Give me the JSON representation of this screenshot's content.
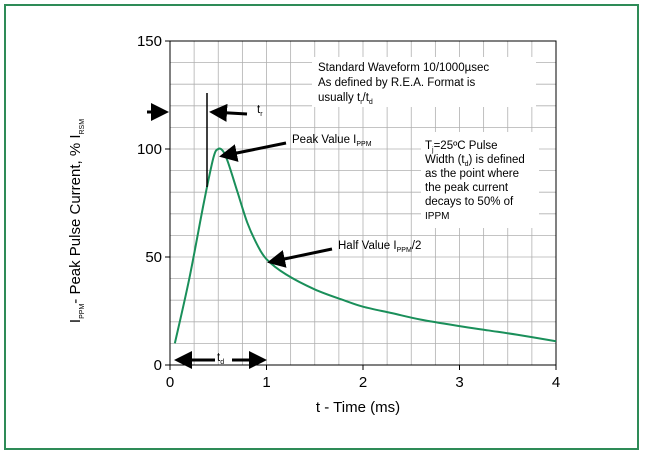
{
  "colors": {
    "frame": "#2e8b57",
    "curve": "#1a8f5a",
    "grid": "#b0b0b0",
    "arrow": "#000000"
  },
  "chart_data": {
    "type": "line",
    "title": "",
    "xlabel": "t - Time (ms)",
    "ylabel_parts": {
      "main": "I",
      "sub1": "PPM",
      "mid": "- Peak Pulse Current, % I",
      "sub2": "RSM"
    },
    "xlim": [
      0,
      4
    ],
    "ylim": [
      0,
      150
    ],
    "x_ticks": [
      "0",
      "1",
      "2",
      "3",
      "4"
    ],
    "y_ticks": [
      "0",
      "50",
      "100",
      "150"
    ],
    "grid": true,
    "series": [
      {
        "name": "",
        "x": [
          0.05,
          0.2,
          0.35,
          0.45,
          0.5,
          0.55,
          0.6,
          0.7,
          0.8,
          0.9,
          1.0,
          1.2,
          1.5,
          1.8,
          2.0,
          2.3,
          2.6,
          3.0,
          3.3,
          3.6,
          4.0
        ],
        "y": [
          10,
          40,
          75,
          96,
          100,
          99,
          94,
          80,
          66,
          56,
          49,
          42,
          35,
          30,
          27,
          24,
          21,
          18,
          16,
          14,
          11
        ]
      }
    ],
    "annotations": {
      "box1": {
        "l1": "Standard Waveform 10/1000µsec",
        "l2": "As defined by R.E.A. Format is",
        "l3a": "usually t",
        "l3b": "r",
        "l3c": "/t",
        "l3d": "d"
      },
      "box2": {
        "l1a": "T",
        "l1b": "j",
        "l1c": "=25ºC Pulse",
        "l2a": "Width (t",
        "l2b": "d",
        "l2c": ") is defined",
        "l3": "as the point where",
        "l4": "the peak current",
        "l5": "decays to 50% of",
        "l6": "IPPM"
      },
      "peak": {
        "main": "Peak Value I",
        "sub": "PPM"
      },
      "half": {
        "main": "Half Value I",
        "sub": "PPM",
        "tail": "/2"
      },
      "tr": {
        "main": "t",
        "sub": "r"
      },
      "td": {
        "main": "t",
        "sub": "d"
      }
    }
  }
}
